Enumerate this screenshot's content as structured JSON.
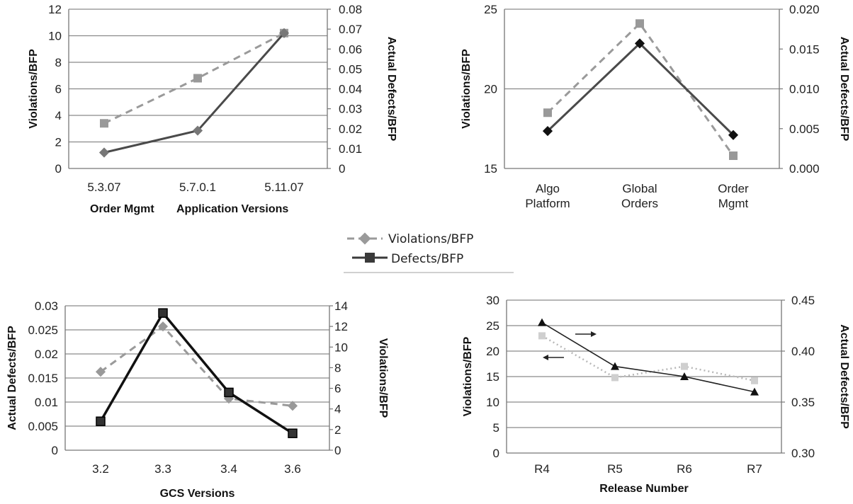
{
  "legend": {
    "violations_label": "Violations/BFP",
    "defects_label": "Defects/BFP"
  },
  "colors": {
    "violations": "#9a9a9a",
    "defects": "#4a4a4a",
    "grid": "#888888"
  },
  "chart_data": [
    {
      "type": "line",
      "categories": [
        "5.3.07",
        "5.7.0.1",
        "5.11.07"
      ],
      "xlabel_parts": [
        "Order Mgmt",
        "Application Versions"
      ],
      "ylabel_left": "Violations/BFP",
      "ylabel_right": "Actual Defects/BFP",
      "left_ticks": [
        "0",
        "2",
        "4",
        "6",
        "8",
        "10",
        "12"
      ],
      "right_ticks": [
        "0",
        "0.01",
        "0.02",
        "0.03",
        "0.04",
        "0.05",
        "0.06",
        "0.07",
        "0.08"
      ],
      "ylim_left": [
        0,
        12
      ],
      "ylim_right": [
        0,
        0.08
      ],
      "series": [
        {
          "name": "Violations/BFP",
          "axis": "left",
          "style": "dashed",
          "values": [
            3.4,
            6.8,
            10.2
          ]
        },
        {
          "name": "Defects/BFP",
          "axis": "right",
          "style": "solid",
          "values": [
            0.008,
            0.019,
            0.068
          ]
        }
      ]
    },
    {
      "type": "line",
      "categories": [
        [
          "Algo",
          "Platform"
        ],
        [
          "Global",
          "Orders"
        ],
        [
          "Order",
          "Mgmt"
        ]
      ],
      "ylabel_left": "Violations/BFP",
      "ylabel_right": "Actual Defects/BFP",
      "left_ticks": [
        "15",
        "20",
        "25"
      ],
      "right_ticks": [
        "0.000",
        "0.005",
        "0.010",
        "0.015",
        "0.020"
      ],
      "ylim_left": [
        15,
        25
      ],
      "ylim_right": [
        0,
        0.02
      ],
      "series": [
        {
          "name": "Violations/BFP",
          "axis": "left",
          "style": "dashed",
          "values": [
            18.5,
            24.1,
            15.8
          ]
        },
        {
          "name": "Defects/BFP",
          "axis": "right",
          "style": "solid",
          "values": [
            0.0047,
            0.0157,
            0.0042
          ]
        }
      ]
    },
    {
      "type": "line",
      "categories": [
        "3.2",
        "3.3",
        "3.4",
        "3.6"
      ],
      "xlabel": "GCS Versions",
      "ylabel_left": "Actual Defects/BFP",
      "ylabel_right": "Violations/BFP",
      "left_ticks": [
        "0",
        "0.005",
        "0.01",
        "0.015",
        "0.02",
        "0.025",
        "0.03"
      ],
      "right_ticks": [
        "0",
        "2",
        "4",
        "6",
        "8",
        "10",
        "12",
        "14"
      ],
      "ylim_left": [
        0,
        0.03
      ],
      "ylim_right": [
        0,
        14
      ],
      "series": [
        {
          "name": "Violations/BFP",
          "axis": "right",
          "style": "dashed",
          "values": [
            7.6,
            12.0,
            5.0,
            4.3
          ]
        },
        {
          "name": "Defects/BFP",
          "axis": "left",
          "style": "solid",
          "values": [
            0.006,
            0.0285,
            0.012,
            0.0035
          ]
        }
      ]
    },
    {
      "type": "line",
      "categories": [
        "R4",
        "R5",
        "R6",
        "R7"
      ],
      "xlabel": "Release Number",
      "ylabel_left": "Violations/BFP",
      "ylabel_right": "Actual Defects/BFP",
      "left_ticks": [
        "0",
        "5",
        "10",
        "15",
        "20",
        "25",
        "30"
      ],
      "right_ticks": [
        "0.30",
        "0.35",
        "0.40",
        "0.45"
      ],
      "ylim_left": [
        0,
        30
      ],
      "ylim_right": [
        0.3,
        0.45
      ],
      "series": [
        {
          "name": "Violations/BFP",
          "axis": "left",
          "style": "dotted",
          "values": [
            23,
            14.8,
            17,
            14.2
          ]
        },
        {
          "name": "Defects/BFP",
          "axis": "right",
          "style": "solid",
          "values": [
            0.428,
            0.385,
            0.375,
            0.36
          ]
        }
      ]
    }
  ]
}
